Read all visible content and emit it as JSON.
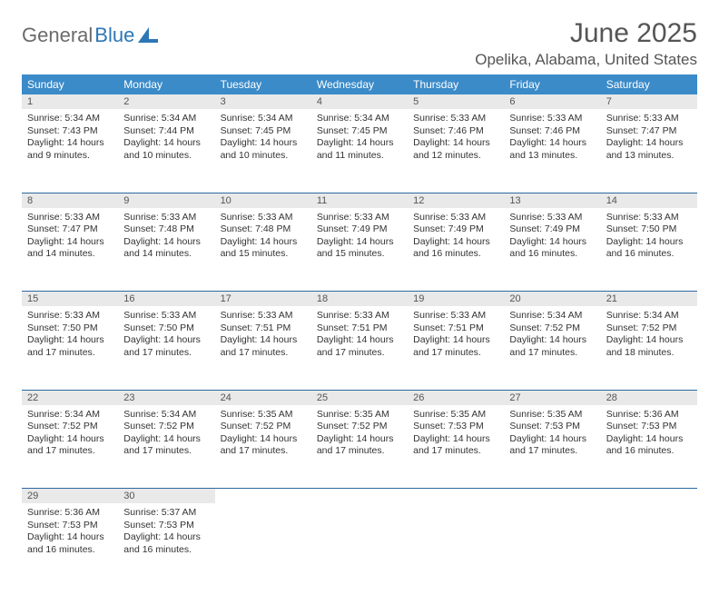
{
  "logo": {
    "part1": "General",
    "part2": "Blue"
  },
  "title": {
    "month": "June 2025",
    "location": "Opelika, Alabama, United States"
  },
  "colors": {
    "header_bg": "#3b8bc9",
    "day_row_bg": "#e9e9e9",
    "rule": "#2d6aa0"
  },
  "day_headers": [
    "Sunday",
    "Monday",
    "Tuesday",
    "Wednesday",
    "Thursday",
    "Friday",
    "Saturday"
  ],
  "weeks": [
    [
      {
        "n": "1",
        "sunrise": "Sunrise: 5:34 AM",
        "sunset": "Sunset: 7:43 PM",
        "day1": "Daylight: 14 hours",
        "day2": "and 9 minutes."
      },
      {
        "n": "2",
        "sunrise": "Sunrise: 5:34 AM",
        "sunset": "Sunset: 7:44 PM",
        "day1": "Daylight: 14 hours",
        "day2": "and 10 minutes."
      },
      {
        "n": "3",
        "sunrise": "Sunrise: 5:34 AM",
        "sunset": "Sunset: 7:45 PM",
        "day1": "Daylight: 14 hours",
        "day2": "and 10 minutes."
      },
      {
        "n": "4",
        "sunrise": "Sunrise: 5:34 AM",
        "sunset": "Sunset: 7:45 PM",
        "day1": "Daylight: 14 hours",
        "day2": "and 11 minutes."
      },
      {
        "n": "5",
        "sunrise": "Sunrise: 5:33 AM",
        "sunset": "Sunset: 7:46 PM",
        "day1": "Daylight: 14 hours",
        "day2": "and 12 minutes."
      },
      {
        "n": "6",
        "sunrise": "Sunrise: 5:33 AM",
        "sunset": "Sunset: 7:46 PM",
        "day1": "Daylight: 14 hours",
        "day2": "and 13 minutes."
      },
      {
        "n": "7",
        "sunrise": "Sunrise: 5:33 AM",
        "sunset": "Sunset: 7:47 PM",
        "day1": "Daylight: 14 hours",
        "day2": "and 13 minutes."
      }
    ],
    [
      {
        "n": "8",
        "sunrise": "Sunrise: 5:33 AM",
        "sunset": "Sunset: 7:47 PM",
        "day1": "Daylight: 14 hours",
        "day2": "and 14 minutes."
      },
      {
        "n": "9",
        "sunrise": "Sunrise: 5:33 AM",
        "sunset": "Sunset: 7:48 PM",
        "day1": "Daylight: 14 hours",
        "day2": "and 14 minutes."
      },
      {
        "n": "10",
        "sunrise": "Sunrise: 5:33 AM",
        "sunset": "Sunset: 7:48 PM",
        "day1": "Daylight: 14 hours",
        "day2": "and 15 minutes."
      },
      {
        "n": "11",
        "sunrise": "Sunrise: 5:33 AM",
        "sunset": "Sunset: 7:49 PM",
        "day1": "Daylight: 14 hours",
        "day2": "and 15 minutes."
      },
      {
        "n": "12",
        "sunrise": "Sunrise: 5:33 AM",
        "sunset": "Sunset: 7:49 PM",
        "day1": "Daylight: 14 hours",
        "day2": "and 16 minutes."
      },
      {
        "n": "13",
        "sunrise": "Sunrise: 5:33 AM",
        "sunset": "Sunset: 7:49 PM",
        "day1": "Daylight: 14 hours",
        "day2": "and 16 minutes."
      },
      {
        "n": "14",
        "sunrise": "Sunrise: 5:33 AM",
        "sunset": "Sunset: 7:50 PM",
        "day1": "Daylight: 14 hours",
        "day2": "and 16 minutes."
      }
    ],
    [
      {
        "n": "15",
        "sunrise": "Sunrise: 5:33 AM",
        "sunset": "Sunset: 7:50 PM",
        "day1": "Daylight: 14 hours",
        "day2": "and 17 minutes."
      },
      {
        "n": "16",
        "sunrise": "Sunrise: 5:33 AM",
        "sunset": "Sunset: 7:50 PM",
        "day1": "Daylight: 14 hours",
        "day2": "and 17 minutes."
      },
      {
        "n": "17",
        "sunrise": "Sunrise: 5:33 AM",
        "sunset": "Sunset: 7:51 PM",
        "day1": "Daylight: 14 hours",
        "day2": "and 17 minutes."
      },
      {
        "n": "18",
        "sunrise": "Sunrise: 5:33 AM",
        "sunset": "Sunset: 7:51 PM",
        "day1": "Daylight: 14 hours",
        "day2": "and 17 minutes."
      },
      {
        "n": "19",
        "sunrise": "Sunrise: 5:33 AM",
        "sunset": "Sunset: 7:51 PM",
        "day1": "Daylight: 14 hours",
        "day2": "and 17 minutes."
      },
      {
        "n": "20",
        "sunrise": "Sunrise: 5:34 AM",
        "sunset": "Sunset: 7:52 PM",
        "day1": "Daylight: 14 hours",
        "day2": "and 17 minutes."
      },
      {
        "n": "21",
        "sunrise": "Sunrise: 5:34 AM",
        "sunset": "Sunset: 7:52 PM",
        "day1": "Daylight: 14 hours",
        "day2": "and 18 minutes."
      }
    ],
    [
      {
        "n": "22",
        "sunrise": "Sunrise: 5:34 AM",
        "sunset": "Sunset: 7:52 PM",
        "day1": "Daylight: 14 hours",
        "day2": "and 17 minutes."
      },
      {
        "n": "23",
        "sunrise": "Sunrise: 5:34 AM",
        "sunset": "Sunset: 7:52 PM",
        "day1": "Daylight: 14 hours",
        "day2": "and 17 minutes."
      },
      {
        "n": "24",
        "sunrise": "Sunrise: 5:35 AM",
        "sunset": "Sunset: 7:52 PM",
        "day1": "Daylight: 14 hours",
        "day2": "and 17 minutes."
      },
      {
        "n": "25",
        "sunrise": "Sunrise: 5:35 AM",
        "sunset": "Sunset: 7:52 PM",
        "day1": "Daylight: 14 hours",
        "day2": "and 17 minutes."
      },
      {
        "n": "26",
        "sunrise": "Sunrise: 5:35 AM",
        "sunset": "Sunset: 7:53 PM",
        "day1": "Daylight: 14 hours",
        "day2": "and 17 minutes."
      },
      {
        "n": "27",
        "sunrise": "Sunrise: 5:35 AM",
        "sunset": "Sunset: 7:53 PM",
        "day1": "Daylight: 14 hours",
        "day2": "and 17 minutes."
      },
      {
        "n": "28",
        "sunrise": "Sunrise: 5:36 AM",
        "sunset": "Sunset: 7:53 PM",
        "day1": "Daylight: 14 hours",
        "day2": "and 16 minutes."
      }
    ],
    [
      {
        "n": "29",
        "sunrise": "Sunrise: 5:36 AM",
        "sunset": "Sunset: 7:53 PM",
        "day1": "Daylight: 14 hours",
        "day2": "and 16 minutes."
      },
      {
        "n": "30",
        "sunrise": "Sunrise: 5:37 AM",
        "sunset": "Sunset: 7:53 PM",
        "day1": "Daylight: 14 hours",
        "day2": "and 16 minutes."
      },
      null,
      null,
      null,
      null,
      null
    ]
  ]
}
